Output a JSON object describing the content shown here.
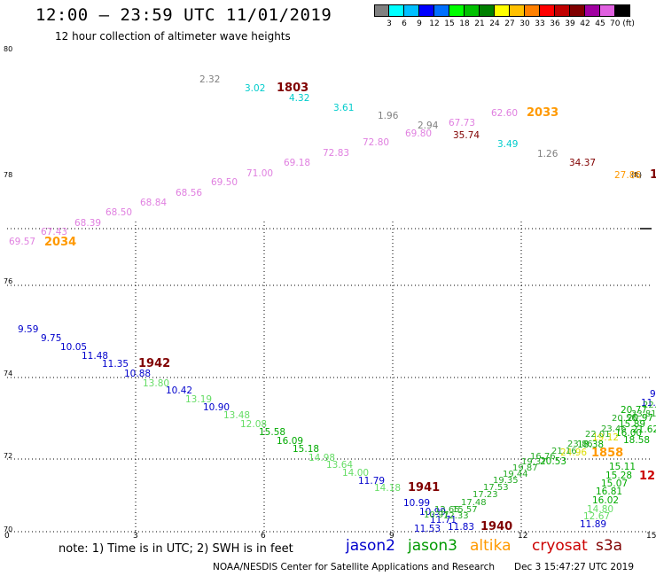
{
  "header": {
    "title": "12:00 — 23:59 UTC 11/01/2019",
    "subtitle": "12 hour collection of altimeter wave heights"
  },
  "scale": {
    "colors": [
      "#808080",
      "#00ffff",
      "#00bfff",
      "#0000ff",
      "#0070ff",
      "#00ff00",
      "#00c000",
      "#008000",
      "#ffff00",
      "#ffc000",
      "#ff8000",
      "#ff0000",
      "#c00000",
      "#800000",
      "#a000a0",
      "#e060e0",
      "#000000"
    ],
    "labels": [
      "3",
      "6",
      "9",
      "12",
      "15",
      "18",
      "21",
      "24",
      "27",
      "30",
      "33",
      "36",
      "39",
      "42",
      "45",
      "70 (ft)"
    ]
  },
  "axes": {
    "y_labels": [
      "80",
      "78",
      "76",
      "74",
      "72",
      "70"
    ],
    "x_labels": [
      "0",
      "3",
      "6",
      "9",
      "12",
      "15"
    ]
  },
  "notes": {
    "text": "note:  1) Time is in UTC;  2) SWH is in feet",
    "legend": [
      {
        "name": "jason2",
        "color": "#0000cc"
      },
      {
        "name": "jason3",
        "color": "#009900"
      },
      {
        "name": "altika",
        "color": "#ff9900"
      },
      {
        "name": "cryosat",
        "color": "#cc0000"
      },
      {
        "name": "s3a",
        "color": "#800000"
      }
    ]
  },
  "footer": {
    "credit": "NOAA/NESDIS Center for Satellite Applications and Research",
    "timestamp": "Dec  3 15:47:27 UTC 2019"
  },
  "colors": {
    "pink": "#e080e0",
    "cyan": "#00cccc",
    "gray": "#808080",
    "darkred": "#800000",
    "orange": "#ff9900",
    "blue": "#0000cc",
    "green": "#00aa00",
    "lightgreen": "#66dd66",
    "yellow": "#dddd00",
    "red": "#cc0000"
  },
  "map_labels": [
    {
      "t": "2.32",
      "c": "gray",
      "b": 0
    },
    {
      "t": "3.02",
      "c": "cyan",
      "b": 0
    },
    {
      "t": "1803",
      "c": "darkred",
      "b": 1
    },
    {
      "t": "4.32",
      "c": "cyan",
      "b": 0
    },
    {
      "t": "3.61",
      "c": "cyan",
      "b": 0
    },
    {
      "t": "1.96",
      "c": "gray",
      "b": 0
    },
    {
      "t": "2.94",
      "c": "gray",
      "b": 0
    },
    {
      "t": "67.73",
      "c": "pink",
      "b": 0
    },
    {
      "t": "62.60",
      "c": "pink",
      "b": 0
    },
    {
      "t": "2033",
      "c": "orange",
      "b": 1
    },
    {
      "t": "69.80",
      "c": "pink",
      "b": 0
    },
    {
      "t": "35.74",
      "c": "darkred",
      "b": 0
    },
    {
      "t": "72.80",
      "c": "pink",
      "b": 0
    },
    {
      "t": "3.49",
      "c": "cyan",
      "b": 0
    },
    {
      "t": "72.83",
      "c": "pink",
      "b": 0
    },
    {
      "t": "1.26",
      "c": "gray",
      "b": 0
    },
    {
      "t": "69.18",
      "c": "pink",
      "b": 0
    },
    {
      "t": "34.37",
      "c": "darkred",
      "b": 0
    },
    {
      "t": "71.00",
      "c": "pink",
      "b": 0
    },
    {
      "t": "27.86",
      "c": "orange",
      "b": 0
    },
    {
      "t": "69.50",
      "c": "pink",
      "b": 0
    },
    {
      "t": "68.56",
      "c": "pink",
      "b": 0
    },
    {
      "t": "68.84",
      "c": "pink",
      "b": 0
    },
    {
      "t": "68.50",
      "c": "pink",
      "b": 0
    },
    {
      "t": "68.39",
      "c": "pink",
      "b": 0
    },
    {
      "t": "67.43",
      "c": "pink",
      "b": 0
    },
    {
      "t": "69.57",
      "c": "pink",
      "b": 0
    },
    {
      "t": "2034",
      "c": "orange",
      "b": 1
    },
    {
      "t": "9.59",
      "c": "blue",
      "b": 0
    },
    {
      "t": "9.75",
      "c": "blue",
      "b": 0
    },
    {
      "t": "10.05",
      "c": "blue",
      "b": 0
    },
    {
      "t": "11.48",
      "c": "blue",
      "b": 0
    },
    {
      "t": "11.35",
      "c": "blue",
      "b": 0
    },
    {
      "t": "1942",
      "c": "darkred",
      "b": 1
    },
    {
      "t": "10.88",
      "c": "blue",
      "b": 0
    },
    {
      "t": "13.80",
      "c": "lightgreen",
      "b": 0
    },
    {
      "t": "10.42",
      "c": "blue",
      "b": 0
    },
    {
      "t": "13.19",
      "c": "lightgreen",
      "b": 0
    },
    {
      "t": "10.90",
      "c": "blue",
      "b": 0
    },
    {
      "t": "13.48",
      "c": "lightgreen",
      "b": 0
    },
    {
      "t": "12.08",
      "c": "lightgreen",
      "b": 0
    },
    {
      "t": "15.58",
      "c": "green",
      "b": 0
    },
    {
      "t": "16.09",
      "c": "green",
      "b": 0
    },
    {
      "t": "15.18",
      "c": "green",
      "b": 0
    },
    {
      "t": "14.98",
      "c": "lightgreen",
      "b": 0
    },
    {
      "t": "13.64",
      "c": "lightgreen",
      "b": 0
    },
    {
      "t": "14.00",
      "c": "lightgreen",
      "b": 0
    },
    {
      "t": "11.79",
      "c": "blue",
      "b": 0
    },
    {
      "t": "14.18",
      "c": "lightgreen",
      "b": 0
    },
    {
      "t": "1941",
      "c": "darkred",
      "b": 1
    },
    {
      "t": "10.99",
      "c": "blue",
      "b": 0
    },
    {
      "t": "10.99",
      "c": "blue",
      "b": 0
    },
    {
      "t": "11.71",
      "c": "blue",
      "b": 0
    },
    {
      "t": "11.53",
      "c": "blue",
      "b": 0
    },
    {
      "t": "11.83",
      "c": "blue",
      "b": 0
    },
    {
      "t": "1940",
      "c": "darkred",
      "b": 1
    },
    {
      "t": "20.53",
      "c": "green",
      "b": 0
    },
    {
      "t": "24.96",
      "c": "yellow",
      "b": 0
    },
    {
      "t": "18.38",
      "c": "green",
      "b": 0
    },
    {
      "t": "1858",
      "c": "orange",
      "b": 1
    },
    {
      "t": "15.89",
      "c": "green",
      "b": 0
    },
    {
      "t": "16.00",
      "c": "green",
      "b": 0
    },
    {
      "t": "15.11",
      "c": "green",
      "b": 0
    },
    {
      "t": "15.28",
      "c": "green",
      "b": 0
    },
    {
      "t": "15.07",
      "c": "green",
      "b": 0
    },
    {
      "t": "16.81",
      "c": "green",
      "b": 0
    },
    {
      "t": "16.02",
      "c": "green",
      "b": 0
    },
    {
      "t": "14.80",
      "c": "lightgreen",
      "b": 0
    },
    {
      "t": "12.67",
      "c": "lightgreen",
      "b": 0
    },
    {
      "t": "11.89",
      "c": "blue",
      "b": 0
    },
    {
      "t": "18.58",
      "c": "green",
      "b": 0
    },
    {
      "t": "19.12",
      "c": "yellow",
      "b": 0
    },
    {
      "t": "20.77",
      "c": "green",
      "b": 0
    },
    {
      "t": "20.97",
      "c": "green",
      "b": 0
    },
    {
      "t": "21.62",
      "c": "green",
      "b": 0
    },
    {
      "t": "9.",
      "c": "blue",
      "b": 0
    },
    {
      "t": "11.",
      "c": "blue",
      "b": 0
    },
    {
      "t": "12",
      "c": "red",
      "b": 1
    },
    {
      "t": "1",
      "c": "darkred",
      "b": 1
    }
  ]
}
